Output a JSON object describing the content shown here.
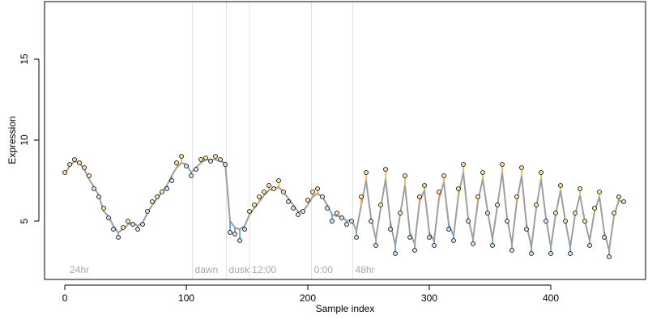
{
  "chart_data": {
    "type": "scatter",
    "xlabel": "Sample index",
    "ylabel": "Expression",
    "xlim": [
      -16.7,
      478
    ],
    "ylim": [
      1.4,
      18.55
    ],
    "xticks": [
      0,
      100,
      200,
      300,
      400
    ],
    "yticks": [
      5,
      10,
      15
    ],
    "x": [
      0,
      4,
      8,
      12,
      16,
      20,
      24,
      28,
      32,
      36,
      40,
      44,
      48,
      52,
      56,
      60,
      64,
      68,
      72,
      76,
      80,
      84,
      88,
      92,
      96,
      100,
      104,
      108,
      112,
      116,
      120,
      124,
      128,
      132,
      136,
      140,
      144,
      148,
      152,
      156,
      160,
      164,
      168,
      172,
      176,
      180,
      184,
      188,
      192,
      196,
      200,
      204,
      208,
      212,
      216,
      220,
      224,
      228,
      232,
      236,
      240,
      244,
      248,
      252,
      256,
      260,
      264,
      268,
      272,
      276,
      280,
      284,
      288,
      292,
      296,
      300,
      304,
      308,
      312,
      316,
      320,
      324,
      328,
      332,
      336,
      340,
      344,
      348,
      352,
      356,
      360,
      364,
      368,
      372,
      376,
      380,
      384,
      388,
      392,
      396,
      400,
      404,
      408,
      412,
      416,
      420,
      424,
      428,
      432,
      436,
      440,
      444,
      448,
      452,
      456,
      460
    ],
    "values": [
      8.0,
      8.5,
      8.8,
      8.6,
      8.3,
      7.8,
      7.0,
      6.5,
      5.8,
      5.2,
      4.5,
      4.0,
      4.6,
      5.0,
      4.8,
      4.5,
      4.8,
      5.6,
      6.2,
      6.5,
      6.8,
      7.0,
      7.5,
      8.6,
      9.0,
      8.4,
      7.8,
      8.2,
      8.8,
      8.9,
      8.7,
      9.0,
      8.8,
      8.5,
      4.3,
      4.2,
      3.8,
      4.5,
      5.6,
      6.0,
      6.5,
      6.8,
      7.2,
      7.0,
      7.5,
      6.8,
      6.2,
      5.8,
      5.4,
      5.6,
      6.3,
      6.8,
      7.0,
      6.5,
      5.8,
      5.0,
      5.5,
      5.2,
      4.8,
      5.0,
      4.0,
      6.5,
      8.0,
      5.0,
      3.5,
      6.0,
      8.2,
      4.5,
      3.0,
      5.5,
      7.8,
      4.0,
      3.2,
      6.5,
      7.2,
      4.0,
      3.5,
      6.8,
      7.8,
      4.5,
      3.8,
      7.0,
      8.5,
      5.0,
      3.6,
      6.5,
      8.0,
      5.5,
      3.5,
      6.0,
      8.5,
      5.0,
      3.2,
      6.5,
      8.3,
      4.5,
      3.0,
      6.0,
      8.0,
      5.0,
      3.0,
      5.5,
      7.2,
      5.0,
      3.0,
      5.5,
      7.0,
      5.0,
      3.5,
      5.8,
      6.8,
      4.0,
      2.8,
      5.5,
      6.5,
      6.2
    ],
    "fit": [
      7.9,
      8.4,
      8.7,
      8.6,
      8.2,
      7.6,
      7.1,
      6.6,
      5.6,
      5.3,
      4.7,
      4.3,
      4.5,
      4.8,
      4.9,
      4.7,
      4.9,
      5.5,
      6.0,
      6.4,
      6.8,
      7.2,
      7.8,
      8.3,
      8.6,
      8.5,
      8.0,
      8.3,
      8.6,
      8.8,
      8.8,
      8.8,
      8.7,
      8.6,
      5.0,
      4.6,
      4.5,
      4.7,
      5.4,
      5.8,
      6.2,
      6.6,
      6.9,
      7.0,
      7.1,
      6.8,
      6.4,
      6.0,
      5.6,
      5.6,
      6.0,
      6.5,
      6.7,
      6.5,
      6.0,
      5.4,
      5.3,
      5.3,
      5.0,
      5.1,
      4.4,
      6.0,
      7.5,
      5.2,
      3.9,
      5.8,
      7.6,
      4.9,
      3.5,
      5.4,
      7.2,
      4.3,
      3.6,
      6.2,
      6.9,
      4.3,
      3.8,
      6.4,
      7.4,
      4.8,
      4.1,
      6.6,
      8.0,
      5.2,
      3.9,
      6.2,
      7.6,
      5.6,
      3.9,
      5.9,
      8.0,
      5.2,
      3.6,
      6.2,
      7.8,
      4.8,
      3.4,
      5.8,
      7.6,
      5.2,
      3.4,
      5.4,
      6.9,
      5.0,
      3.4,
      5.4,
      6.6,
      5.0,
      3.8,
      5.6,
      6.5,
      4.3,
      3.2,
      5.3,
      6.3,
      6.1
    ],
    "line_color": "#9e9e9e",
    "above_color": "#f5a623",
    "below_color": "#4a90d9",
    "vlines": [
      105,
      133,
      152,
      203,
      237
    ],
    "annotations": [
      {
        "x": 2,
        "label": "24hr"
      },
      {
        "x": 105,
        "label": "dawn"
      },
      {
        "x": 133,
        "label": "dusk"
      },
      {
        "x": 152,
        "label": "12:00"
      },
      {
        "x": 203,
        "label": "0:00"
      },
      {
        "x": 237,
        "label": "48hr"
      }
    ]
  }
}
